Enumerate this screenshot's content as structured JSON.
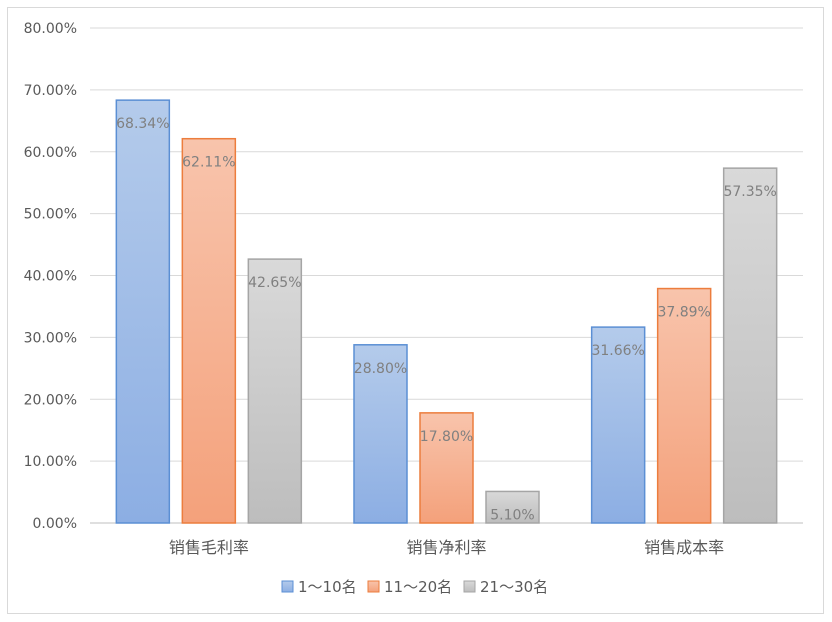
{
  "chart_data": {
    "type": "bar",
    "categories": [
      "销售毛利率",
      "销售净利率",
      "销售成本率"
    ],
    "series": [
      {
        "name": "1～10名",
        "values": [
          68.34,
          28.8,
          31.66
        ],
        "labels": [
          "68.34%",
          "28.80%",
          "31.66%"
        ],
        "color_top": "#b4cbeb",
        "color_bottom": "#8caee3",
        "stroke": "#5b8fd4"
      },
      {
        "name": "11～20名",
        "values": [
          62.11,
          17.8,
          37.89
        ],
        "labels": [
          "62.11%",
          "17.80%",
          "37.89%"
        ],
        "color_top": "#f8c4ac",
        "color_bottom": "#f4a17b",
        "stroke": "#ec7d3d"
      },
      {
        "name": "21～30名",
        "values": [
          42.65,
          5.1,
          57.35
        ],
        "labels": [
          "42.65%",
          "5.10%",
          "57.35%"
        ],
        "color_top": "#d9d9d9",
        "color_bottom": "#bdbdbd",
        "stroke": "#a5a5a5"
      }
    ],
    "ylim": [
      0,
      80
    ],
    "yticks": [
      0,
      10,
      20,
      30,
      40,
      50,
      60,
      70,
      80
    ],
    "ytick_labels": [
      "0.00%",
      "10.00%",
      "20.00%",
      "30.00%",
      "40.00%",
      "50.00%",
      "60.00%",
      "70.00%",
      "80.00%"
    ],
    "title": "",
    "xlabel": "",
    "ylabel": "",
    "grid": true,
    "legend_position": "bottom"
  }
}
